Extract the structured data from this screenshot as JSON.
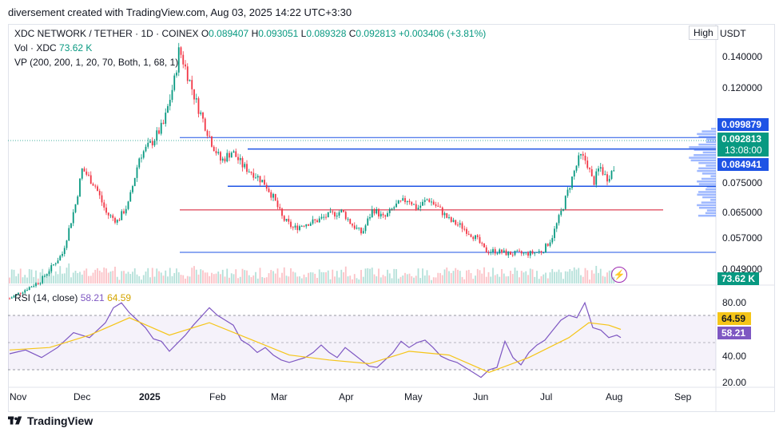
{
  "header": {
    "title": "diversement created with TradingView.com, Aug 03, 2025 14:22 UTC+3:30"
  },
  "legend": {
    "symbol": "XDC NETWORK / TETHER · 1D · COINEX",
    "o_label": "O",
    "o": "0.089407",
    "h_label": "H",
    "h": "0.093051",
    "l_label": "L",
    "l": "0.089328",
    "c_label": "C",
    "c": "0.092813",
    "change": "+0.003406 (+3.81%)",
    "vol_label": "Vol · XDC",
    "vol": "73.62 K",
    "vp": "VP (200, 200, 1, 20, 70, Both, 1, 68, 1)",
    "rsi_label": "RSI (14, close)",
    "rsi": "58.21",
    "rsi_ma": "64.59"
  },
  "controls": {
    "high": "High",
    "currency": "USDT"
  },
  "price_badges": {
    "upper": "0.099879",
    "last": "0.092813",
    "countdown": "13:08:00",
    "lower": "0.084941",
    "volume": "73.62 K"
  },
  "rsi_badges": {
    "ma": "64.59",
    "rsi": "58.21"
  },
  "footer": {
    "brand": "TradingView"
  },
  "colors": {
    "up": "#089981",
    "down": "#f23645",
    "line": "#1e53e5",
    "redline": "#d5102a",
    "rsi": "#7e57c2",
    "rsi_ma": "#f5c518"
  },
  "chart_data": [
    {
      "type": "candlestick",
      "title": "XDC NETWORK / TETHER · 1D · COINEX",
      "x_tick_labels": [
        "Nov",
        "Dec",
        "2025",
        "Feb",
        "Mar",
        "Apr",
        "May",
        "Jun",
        "Jul",
        "Aug",
        "Sep"
      ],
      "y_tick_labels": [
        "0.140000",
        "0.120000",
        "0.075000",
        "0.065000",
        "0.057000",
        "0.049000"
      ],
      "ylim": [
        0.046,
        0.15
      ],
      "horizontal_levels": [
        {
          "price": 0.1045,
          "color": "blue"
        },
        {
          "price": 0.099879,
          "color": "blue"
        },
        {
          "price": 0.084941,
          "color": "blue"
        },
        {
          "price": 0.0755,
          "color": "red"
        },
        {
          "price": 0.0585,
          "color": "blue"
        }
      ],
      "close_path": [
        [
          "2024-11-01",
          0.04
        ],
        [
          "2024-11-15",
          0.047
        ],
        [
          "2024-11-25",
          0.058
        ],
        [
          "2024-12-01",
          0.078
        ],
        [
          "2024-12-04",
          0.092
        ],
        [
          "2024-12-10",
          0.085
        ],
        [
          "2024-12-15",
          0.074
        ],
        [
          "2024-12-20",
          0.071
        ],
        [
          "2024-12-25",
          0.078
        ],
        [
          "2024-12-30",
          0.097
        ],
        [
          "2025-01-05",
          0.103
        ],
        [
          "2025-01-10",
          0.11
        ],
        [
          "2025-01-15",
          0.128
        ],
        [
          "2025-01-17",
          0.14
        ],
        [
          "2025-01-20",
          0.132
        ],
        [
          "2025-01-25",
          0.118
        ],
        [
          "2025-02-01",
          0.102
        ],
        [
          "2025-02-05",
          0.095
        ],
        [
          "2025-02-10",
          0.099
        ],
        [
          "2025-02-15",
          0.093
        ],
        [
          "2025-02-20",
          0.09
        ],
        [
          "2025-02-25",
          0.086
        ],
        [
          "2025-03-01",
          0.08
        ],
        [
          "2025-03-05",
          0.072
        ],
        [
          "2025-03-10",
          0.068
        ],
        [
          "2025-03-15",
          0.07
        ],
        [
          "2025-03-20",
          0.071
        ],
        [
          "2025-03-25",
          0.073
        ],
        [
          "2025-04-01",
          0.075
        ],
        [
          "2025-04-05",
          0.07
        ],
        [
          "2025-04-10",
          0.066
        ],
        [
          "2025-04-15",
          0.076
        ],
        [
          "2025-04-20",
          0.072
        ],
        [
          "2025-04-25",
          0.077
        ],
        [
          "2025-05-01",
          0.08
        ],
        [
          "2025-05-05",
          0.076
        ],
        [
          "2025-05-10",
          0.08
        ],
        [
          "2025-05-15",
          0.076
        ],
        [
          "2025-05-20",
          0.071
        ],
        [
          "2025-05-25",
          0.069
        ],
        [
          "2025-06-01",
          0.064
        ],
        [
          "2025-06-05",
          0.059
        ],
        [
          "2025-06-10",
          0.059
        ],
        [
          "2025-06-15",
          0.058
        ],
        [
          "2025-06-20",
          0.058
        ],
        [
          "2025-06-25",
          0.058
        ],
        [
          "2025-07-01",
          0.059
        ],
        [
          "2025-07-05",
          0.064
        ],
        [
          "2025-07-10",
          0.076
        ],
        [
          "2025-07-15",
          0.09
        ],
        [
          "2025-07-18",
          0.097
        ],
        [
          "2025-07-21",
          0.095
        ],
        [
          "2025-07-24",
          0.086
        ],
        [
          "2025-07-27",
          0.093
        ],
        [
          "2025-07-30",
          0.088
        ],
        [
          "2025-08-03",
          0.092813
        ]
      ]
    },
    {
      "type": "line",
      "title": "RSI (14, close)",
      "y_tick_labels": [
        "80.00",
        "40.00",
        "20.00"
      ],
      "ylim": [
        18,
        90
      ],
      "bands": [
        70,
        30
      ],
      "series": [
        {
          "name": "RSI (14, close)",
          "values": [
            [
              0,
              45
            ],
            [
              4,
              48
            ],
            [
              8,
              42
            ],
            [
              12,
              50
            ],
            [
              16,
              62
            ],
            [
              20,
              58
            ],
            [
              24,
              70
            ],
            [
              26,
              82
            ],
            [
              28,
              86
            ],
            [
              30,
              78
            ],
            [
              34,
              66
            ],
            [
              36,
              57
            ],
            [
              38,
              55
            ],
            [
              40,
              47
            ],
            [
              44,
              60
            ],
            [
              46,
              68
            ],
            [
              48,
              75
            ],
            [
              50,
              82
            ],
            [
              52,
              76
            ],
            [
              54,
              72
            ],
            [
              56,
              68
            ],
            [
              58,
              56
            ],
            [
              60,
              52
            ],
            [
              62,
              46
            ],
            [
              64,
              50
            ],
            [
              66,
              44
            ],
            [
              68,
              40
            ],
            [
              70,
              38
            ],
            [
              72,
              40
            ],
            [
              74,
              42
            ],
            [
              76,
              46
            ],
            [
              78,
              52
            ],
            [
              80,
              46
            ],
            [
              82,
              42
            ],
            [
              84,
              50
            ],
            [
              86,
              45
            ],
            [
              88,
              40
            ],
            [
              90,
              35
            ],
            [
              92,
              34
            ],
            [
              94,
              40
            ],
            [
              96,
              46
            ],
            [
              98,
              55
            ],
            [
              100,
              50
            ],
            [
              102,
              54
            ],
            [
              104,
              56
            ],
            [
              106,
              50
            ],
            [
              108,
              43
            ],
            [
              110,
              40
            ],
            [
              112,
              38
            ],
            [
              114,
              34
            ],
            [
              116,
              30
            ],
            [
              118,
              26
            ],
            [
              120,
              32
            ],
            [
              122,
              34
            ],
            [
              124,
              55
            ],
            [
              126,
              42
            ],
            [
              128,
              36
            ],
            [
              130,
              46
            ],
            [
              132,
              52
            ],
            [
              134,
              56
            ],
            [
              136,
              64
            ],
            [
              138,
              72
            ],
            [
              140,
              76
            ],
            [
              142,
              74
            ],
            [
              144,
              86
            ],
            [
              146,
              66
            ],
            [
              148,
              64
            ],
            [
              150,
              58
            ],
            [
              152,
              60
            ],
            [
              153,
              58
            ]
          ]
        },
        {
          "name": "MA",
          "values": [
            [
              0,
              48
            ],
            [
              10,
              50
            ],
            [
              20,
              60
            ],
            [
              30,
              74
            ],
            [
              40,
              60
            ],
            [
              50,
              70
            ],
            [
              60,
              57
            ],
            [
              70,
              44
            ],
            [
              80,
              40
            ],
            [
              90,
              37
            ],
            [
              100,
              47
            ],
            [
              110,
              44
            ],
            [
              120,
              30
            ],
            [
              130,
              42
            ],
            [
              140,
              58
            ],
            [
              145,
              70
            ],
            [
              150,
              68
            ],
            [
              153,
              64.59
            ]
          ]
        }
      ]
    }
  ]
}
